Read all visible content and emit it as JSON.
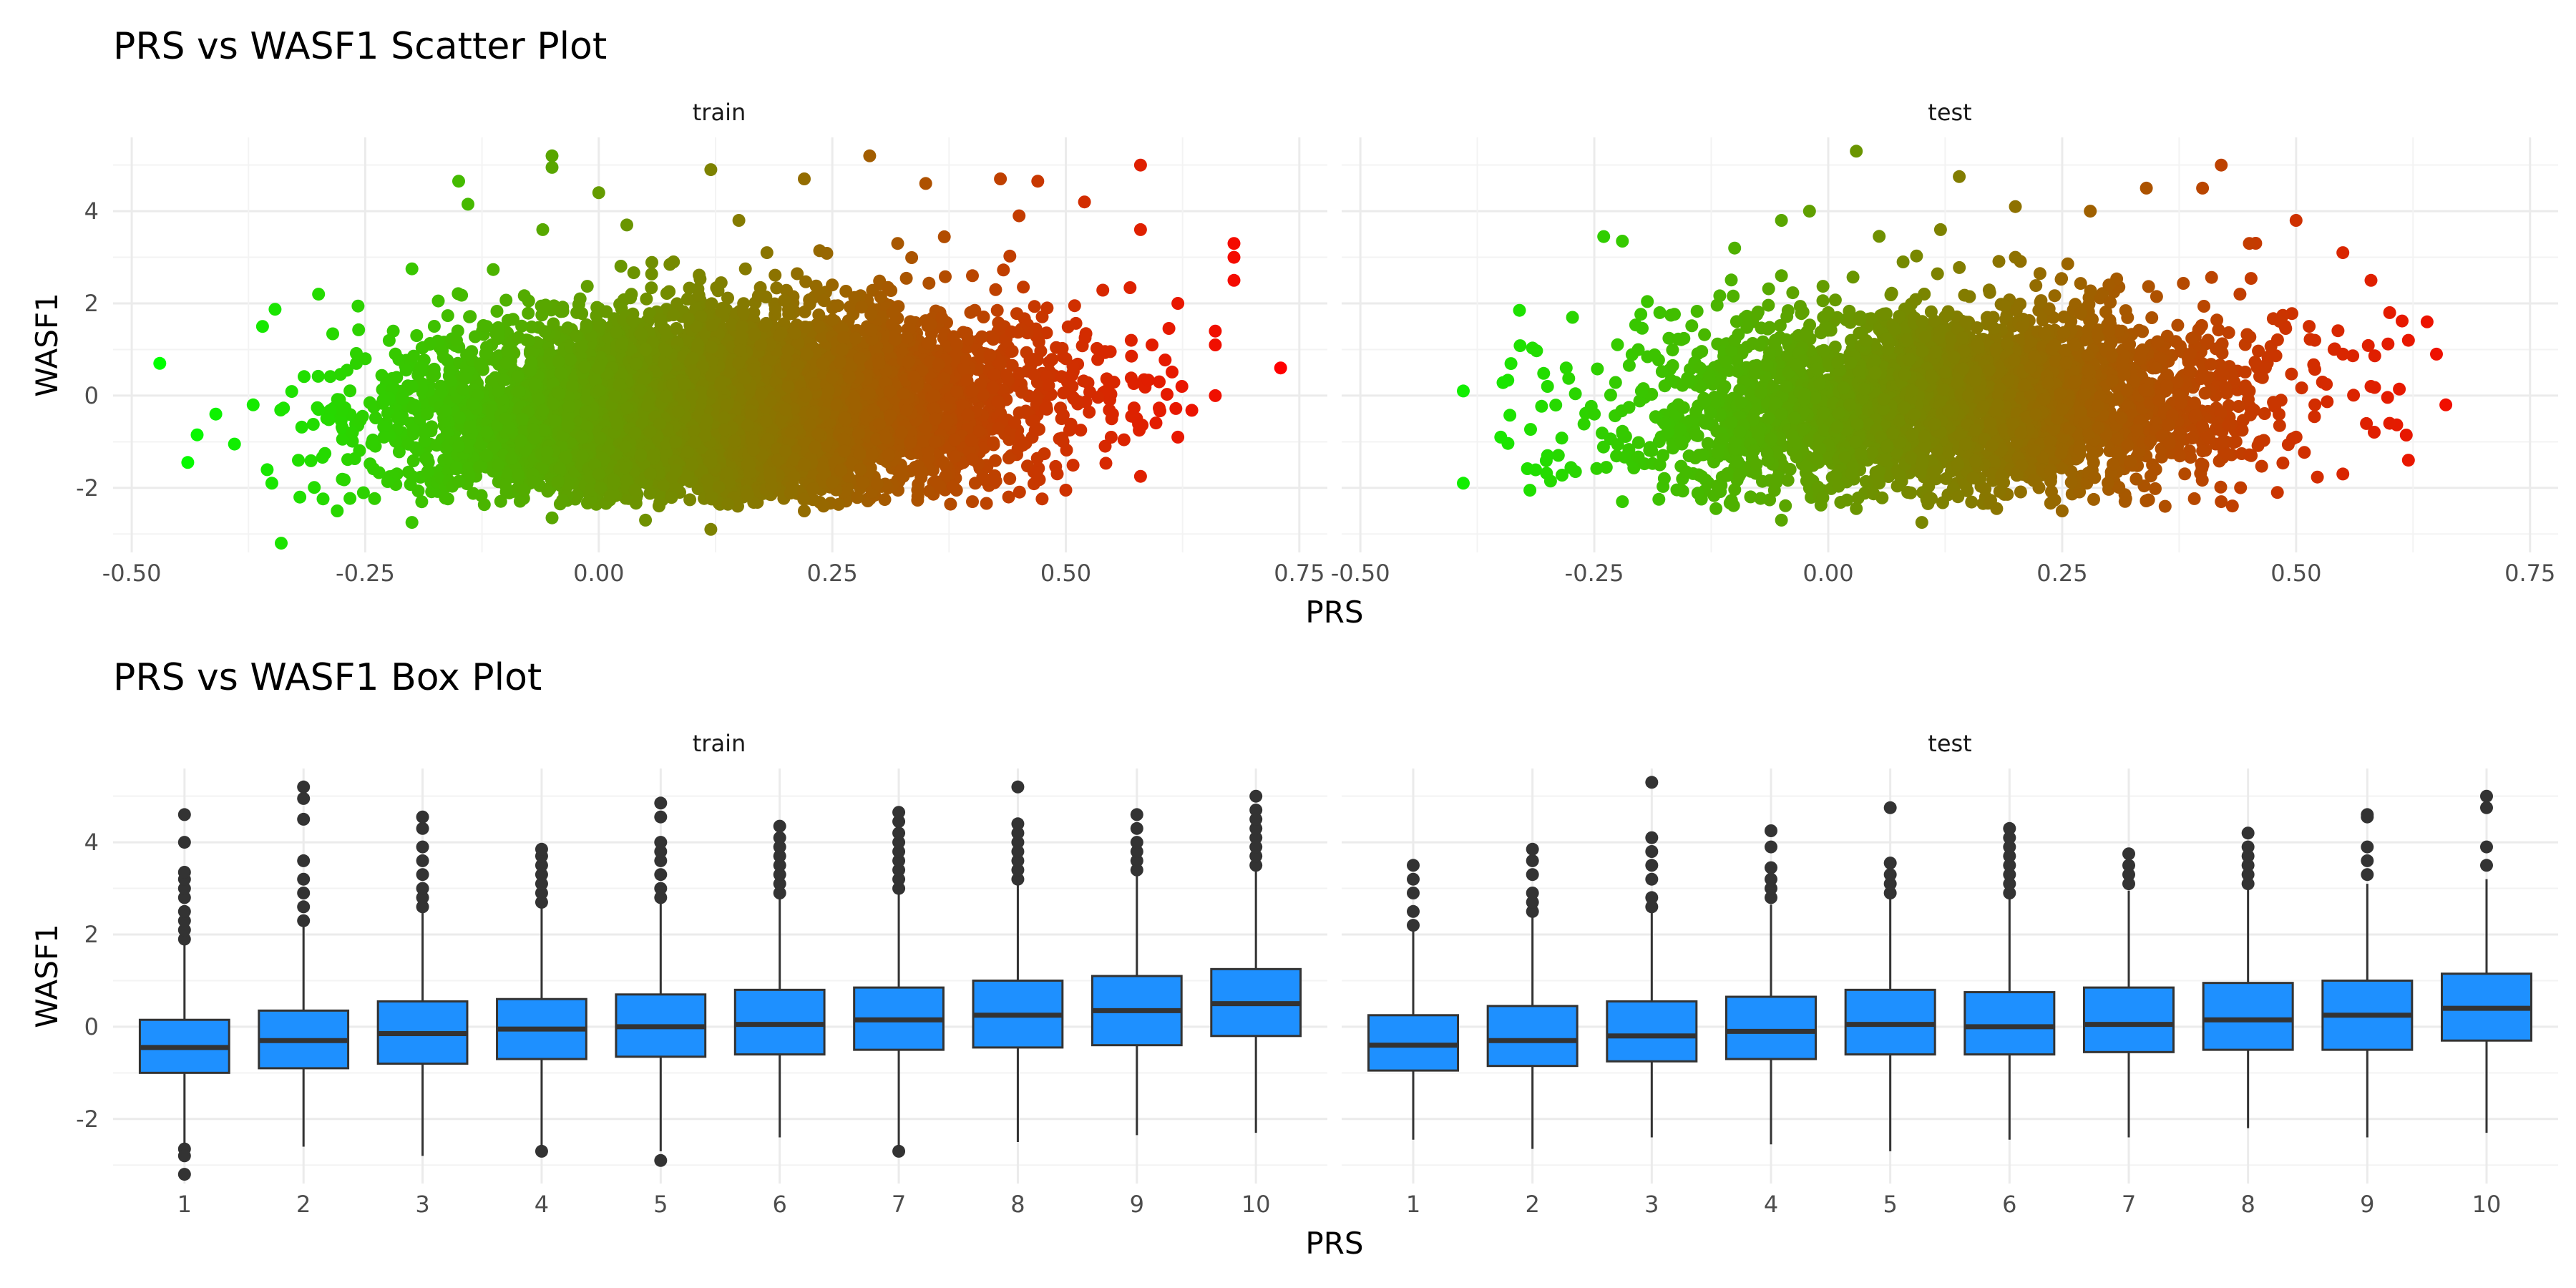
{
  "chart_data": [
    {
      "type": "scatter",
      "title": "PRS vs WASF1 Scatter Plot",
      "xlabel": "PRS",
      "ylabel": "WASF1",
      "facets": [
        "train",
        "test"
      ],
      "xlim": [
        -0.52,
        0.78
      ],
      "ylim": [
        -3.4,
        5.6
      ],
      "xticks": [
        -0.5,
        -0.25,
        0.0,
        0.25,
        0.5,
        0.75
      ],
      "xtick_labels": [
        "-0.50",
        "-0.25",
        "0.00",
        "0.25",
        "0.50",
        "0.75"
      ],
      "yticks": [
        -2,
        0,
        2,
        4
      ],
      "ytick_labels": [
        "-2",
        "0",
        "2",
        "4"
      ],
      "color_scale": {
        "low": "#00ff00",
        "high": "#ff0000",
        "variable": "PRS"
      },
      "grid": true,
      "legend": "none",
      "series": [
        {
          "facet": "train",
          "points": [
            [
              -0.47,
              0.7
            ],
            [
              0.73,
              0.6
            ],
            [
              -0.43,
              -0.85
            ],
            [
              -0.44,
              -1.45
            ],
            [
              -0.34,
              -3.2
            ],
            [
              -0.41,
              -0.4
            ],
            [
              -0.36,
              1.5
            ],
            [
              -0.3,
              2.2
            ],
            [
              -0.2,
              2.75
            ],
            [
              -0.15,
              4.65
            ],
            [
              -0.14,
              4.15
            ],
            [
              -0.05,
              5.2
            ],
            [
              -0.05,
              4.95
            ],
            [
              0.0,
              4.4
            ],
            [
              0.03,
              3.7
            ],
            [
              0.12,
              4.9
            ],
            [
              0.22,
              4.7
            ],
            [
              0.29,
              5.2
            ],
            [
              0.35,
              4.6
            ],
            [
              0.43,
              4.7
            ],
            [
              0.47,
              4.65
            ],
            [
              0.52,
              4.2
            ],
            [
              0.58,
              5.0
            ],
            [
              0.58,
              3.6
            ],
            [
              0.68,
              3.3
            ],
            [
              0.68,
              2.5
            ],
            [
              0.68,
              3.0
            ],
            [
              0.66,
              1.4
            ],
            [
              0.66,
              1.1
            ],
            [
              0.66,
              0.0
            ],
            [
              0.62,
              2.0
            ],
            [
              0.58,
              -1.75
            ],
            [
              0.5,
              -2.05
            ],
            [
              0.4,
              -2.3
            ],
            [
              0.22,
              -2.5
            ],
            [
              0.12,
              -2.9
            ],
            [
              0.05,
              -2.7
            ],
            [
              -0.05,
              -2.65
            ],
            [
              -0.2,
              -2.75
            ],
            [
              -0.28,
              -2.5
            ],
            [
              -0.32,
              -2.2
            ],
            [
              -0.39,
              -1.05
            ],
            [
              -0.37,
              -0.2
            ],
            [
              -0.25,
              0.8
            ],
            [
              -0.23,
              -0.9
            ],
            [
              -0.12,
              1.5
            ],
            [
              -0.12,
              -1.3
            ],
            [
              -0.02,
              2.1
            ],
            [
              0.0,
              -1.7
            ],
            [
              0.08,
              2.9
            ],
            [
              0.1,
              -1.5
            ],
            [
              0.18,
              3.1
            ],
            [
              0.2,
              -1.2
            ],
            [
              0.25,
              2.4
            ],
            [
              0.28,
              -1.6
            ],
            [
              0.32,
              3.3
            ],
            [
              0.36,
              -1.0
            ],
            [
              0.4,
              2.6
            ],
            [
              0.44,
              -1.8
            ],
            [
              0.48,
              1.9
            ],
            [
              0.5,
              0.8
            ],
            [
              0.55,
              -0.4
            ],
            [
              0.57,
              1.2
            ],
            [
              0.6,
              0.3
            ],
            [
              -0.3,
              -0.3
            ],
            [
              -0.2,
              0.2
            ],
            [
              -0.1,
              -0.5
            ],
            [
              0.0,
              0.6
            ],
            [
              0.1,
              0.0
            ],
            [
              0.2,
              -0.3
            ],
            [
              0.3,
              0.7
            ],
            [
              0.4,
              0.1
            ],
            [
              -0.06,
              3.6
            ],
            [
              -0.22,
              1.4
            ],
            [
              0.15,
              3.8
            ],
            [
              0.45,
              3.9
            ],
            [
              0.62,
              -0.9
            ],
            [
              -0.35,
              -1.9
            ],
            [
              0.05,
              1.0
            ],
            [
              0.35,
              -0.7
            ],
            [
              0.25,
              0.4
            ],
            [
              -0.15,
              -1.1
            ]
          ]
        },
        {
          "facet": "test",
          "points": [
            [
              -0.39,
              -1.9
            ],
            [
              -0.39,
              0.1
            ],
            [
              -0.35,
              -0.9
            ],
            [
              -0.33,
              1.85
            ],
            [
              -0.24,
              3.45
            ],
            [
              -0.22,
              3.35
            ],
            [
              -0.1,
              3.2
            ],
            [
              -0.05,
              3.8
            ],
            [
              -0.02,
              4.0
            ],
            [
              0.03,
              5.3
            ],
            [
              0.14,
              4.75
            ],
            [
              0.2,
              4.1
            ],
            [
              0.28,
              4.0
            ],
            [
              0.34,
              4.5
            ],
            [
              0.4,
              4.5
            ],
            [
              0.42,
              5.0
            ],
            [
              0.5,
              3.8
            ],
            [
              0.55,
              3.1
            ],
            [
              0.58,
              2.5
            ],
            [
              0.6,
              1.8
            ],
            [
              0.64,
              1.6
            ],
            [
              0.65,
              0.9
            ],
            [
              0.66,
              -0.2
            ],
            [
              0.62,
              -1.4
            ],
            [
              0.55,
              -1.7
            ],
            [
              0.48,
              -2.1
            ],
            [
              0.42,
              -2.3
            ],
            [
              0.36,
              -2.4
            ],
            [
              0.25,
              -2.5
            ],
            [
              0.18,
              -2.45
            ],
            [
              0.1,
              -2.75
            ],
            [
              0.03,
              -2.45
            ],
            [
              -0.05,
              -2.7
            ],
            [
              -0.12,
              -2.45
            ],
            [
              -0.22,
              -2.3
            ],
            [
              -0.3,
              -1.3
            ],
            [
              -0.28,
              0.6
            ],
            [
              -0.18,
              1.8
            ],
            [
              -0.18,
              -1.5
            ],
            [
              -0.05,
              2.6
            ],
            [
              -0.02,
              -1.8
            ],
            [
              0.08,
              2.9
            ],
            [
              0.1,
              -1.5
            ],
            [
              0.2,
              3.0
            ],
            [
              0.22,
              -1.2
            ],
            [
              0.3,
              2.4
            ],
            [
              0.35,
              -1.6
            ],
            [
              0.44,
              2.2
            ],
            [
              0.5,
              -0.9
            ],
            [
              0.52,
              1.2
            ],
            [
              0.58,
              0.2
            ],
            [
              0.6,
              -0.6
            ],
            [
              -0.25,
              -0.4
            ],
            [
              -0.15,
              0.3
            ],
            [
              -0.05,
              -0.4
            ],
            [
              0.05,
              0.5
            ],
            [
              0.15,
              0.0
            ],
            [
              0.25,
              -0.3
            ],
            [
              0.35,
              0.6
            ],
            [
              0.45,
              0.1
            ],
            [
              -0.3,
              0.2
            ],
            [
              0.55,
              0.9
            ],
            [
              -0.1,
              1.2
            ],
            [
              0.12,
              3.6
            ],
            [
              0.45,
              3.3
            ],
            [
              0.62,
              1.2
            ],
            [
              -0.08,
              -1.2
            ],
            [
              0.3,
              1.4
            ],
            [
              0.4,
              -1.2
            ],
            [
              0.0,
              1.8
            ]
          ]
        }
      ]
    },
    {
      "type": "box",
      "title": "PRS vs WASF1 Box Plot",
      "xlabel": "PRS",
      "ylabel": "WASF1",
      "facets": [
        "train",
        "test"
      ],
      "categories": [
        "1",
        "2",
        "3",
        "4",
        "5",
        "6",
        "7",
        "8",
        "9",
        "10"
      ],
      "ylim": [
        -3.4,
        5.6
      ],
      "yticks": [
        -2,
        0,
        2,
        4
      ],
      "ytick_labels": [
        "-2",
        "0",
        "2",
        "4"
      ],
      "fill": "#1e90ff",
      "grid": true,
      "series": [
        {
          "facet": "train",
          "boxes": [
            {
              "q1": -1.0,
              "median": -0.45,
              "q3": 0.15,
              "whisker_low": -2.6,
              "whisker_high": 1.85,
              "outliers": [
                1.9,
                2.1,
                2.3,
                2.5,
                2.8,
                3.0,
                3.2,
                3.35,
                4.0,
                4.6,
                -2.65,
                -2.8,
                -3.2
              ]
            },
            {
              "q1": -0.9,
              "median": -0.3,
              "q3": 0.35,
              "whisker_low": -2.6,
              "whisker_high": 2.2,
              "outliers": [
                2.3,
                2.6,
                2.9,
                3.2,
                3.6,
                4.5,
                4.95,
                5.2
              ]
            },
            {
              "q1": -0.8,
              "median": -0.15,
              "q3": 0.55,
              "whisker_low": -2.8,
              "whisker_high": 2.5,
              "outliers": [
                2.6,
                2.8,
                3.0,
                3.3,
                3.6,
                3.9,
                4.3,
                4.55
              ]
            },
            {
              "q1": -0.7,
              "median": -0.05,
              "q3": 0.6,
              "whisker_low": -2.65,
              "whisker_high": 2.6,
              "outliers": [
                2.7,
                2.9,
                3.1,
                3.3,
                3.5,
                3.7,
                3.85,
                -2.7
              ]
            },
            {
              "q1": -0.65,
              "median": 0.0,
              "q3": 0.7,
              "whisker_low": -2.7,
              "whisker_high": 2.7,
              "outliers": [
                2.8,
                3.0,
                3.3,
                3.6,
                3.8,
                4.0,
                4.55,
                4.85,
                -2.9
              ]
            },
            {
              "q1": -0.6,
              "median": 0.05,
              "q3": 0.8,
              "whisker_low": -2.4,
              "whisker_high": 2.85,
              "outliers": [
                2.9,
                3.1,
                3.3,
                3.5,
                3.7,
                3.9,
                4.1,
                4.35
              ]
            },
            {
              "q1": -0.5,
              "median": 0.15,
              "q3": 0.85,
              "whisker_low": -2.6,
              "whisker_high": 2.9,
              "outliers": [
                3.0,
                3.2,
                3.4,
                3.6,
                3.8,
                4.0,
                4.2,
                4.45,
                4.65,
                -2.7
              ]
            },
            {
              "q1": -0.45,
              "median": 0.25,
              "q3": 1.0,
              "whisker_low": -2.5,
              "whisker_high": 3.15,
              "outliers": [
                3.2,
                3.4,
                3.6,
                3.8,
                4.0,
                4.2,
                4.4,
                5.2
              ]
            },
            {
              "q1": -0.4,
              "median": 0.35,
              "q3": 1.1,
              "whisker_low": -2.35,
              "whisker_high": 3.3,
              "outliers": [
                3.4,
                3.6,
                3.8,
                4.0,
                4.3,
                4.6
              ]
            },
            {
              "q1": -0.2,
              "median": 0.5,
              "q3": 1.25,
              "whisker_low": -2.3,
              "whisker_high": 3.45,
              "outliers": [
                3.5,
                3.7,
                3.9,
                4.1,
                4.3,
                4.5,
                4.7,
                5.0
              ]
            }
          ]
        },
        {
          "facet": "test",
          "boxes": [
            {
              "q1": -0.95,
              "median": -0.4,
              "q3": 0.25,
              "whisker_low": -2.45,
              "whisker_high": 2.1,
              "outliers": [
                2.2,
                2.5,
                2.9,
                3.2,
                3.5
              ]
            },
            {
              "q1": -0.85,
              "median": -0.3,
              "q3": 0.45,
              "whisker_low": -2.65,
              "whisker_high": 2.4,
              "outliers": [
                2.5,
                2.7,
                2.9,
                3.3,
                3.6,
                3.85
              ]
            },
            {
              "q1": -0.75,
              "median": -0.2,
              "q3": 0.55,
              "whisker_low": -2.4,
              "whisker_high": 2.5,
              "outliers": [
                2.6,
                2.8,
                3.2,
                3.5,
                3.8,
                4.1,
                5.3
              ]
            },
            {
              "q1": -0.7,
              "median": -0.1,
              "q3": 0.65,
              "whisker_low": -2.55,
              "whisker_high": 2.65,
              "outliers": [
                2.8,
                3.0,
                3.2,
                3.45,
                3.9,
                4.25
              ]
            },
            {
              "q1": -0.6,
              "median": 0.05,
              "q3": 0.8,
              "whisker_low": -2.7,
              "whisker_high": 2.8,
              "outliers": [
                2.9,
                3.1,
                3.3,
                3.55,
                4.75
              ]
            },
            {
              "q1": -0.6,
              "median": 0.0,
              "q3": 0.75,
              "whisker_low": -2.45,
              "whisker_high": 2.8,
              "outliers": [
                2.9,
                3.1,
                3.3,
                3.5,
                3.7,
                3.9,
                4.1,
                4.3
              ]
            },
            {
              "q1": -0.55,
              "median": 0.05,
              "q3": 0.85,
              "whisker_low": -2.4,
              "whisker_high": 2.95,
              "outliers": [
                3.1,
                3.3,
                3.5,
                3.75
              ]
            },
            {
              "q1": -0.5,
              "median": 0.15,
              "q3": 0.95,
              "whisker_low": -2.2,
              "whisker_high": 3.0,
              "outliers": [
                3.1,
                3.3,
                3.5,
                3.7,
                3.9,
                4.2
              ]
            },
            {
              "q1": -0.5,
              "median": 0.25,
              "q3": 1.0,
              "whisker_low": -2.4,
              "whisker_high": 3.1,
              "outliers": [
                3.3,
                3.6,
                3.9,
                4.55,
                4.6
              ]
            },
            {
              "q1": -0.3,
              "median": 0.4,
              "q3": 1.15,
              "whisker_low": -2.3,
              "whisker_high": 3.2,
              "outliers": [
                3.5,
                3.9,
                4.75,
                5.0
              ]
            }
          ]
        }
      ]
    }
  ]
}
